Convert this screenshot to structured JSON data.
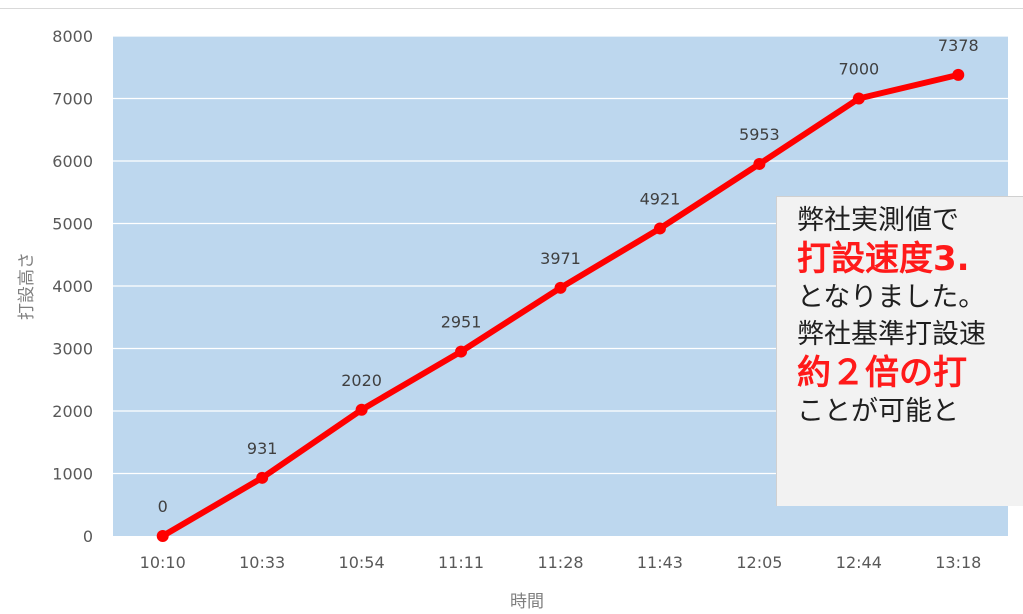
{
  "chart_data": {
    "type": "line",
    "xlabel": "時間",
    "ylabel": "打設高さ",
    "ylim": [
      0,
      8000
    ],
    "yticks": [
      0,
      1000,
      2000,
      3000,
      4000,
      5000,
      6000,
      7000,
      8000
    ],
    "categories": [
      "10:10",
      "10:33",
      "10:54",
      "11:11",
      "11:28",
      "11:43",
      "12:05",
      "12:44",
      "13:18"
    ],
    "series": [
      {
        "values": [
          0,
          931,
          2020,
          2951,
          3971,
          4921,
          5953,
          7000,
          7378
        ]
      }
    ],
    "data_labels": [
      "0",
      "931",
      "2020",
      "2951",
      "3971",
      "4921",
      "5953",
      "7000",
      "7378"
    ],
    "grid": true,
    "legend": "none",
    "colors": {
      "line": "#ff0000",
      "plot_bg": "#bdd7ee",
      "grid": "#ffffff"
    }
  },
  "callout": {
    "line1": "弊社実測値で",
    "line2": "打設速度3.",
    "line3": "となりました。",
    "line4": "弊社基準打設速",
    "line5": "約２倍の打",
    "line6": "ことが可能と"
  }
}
